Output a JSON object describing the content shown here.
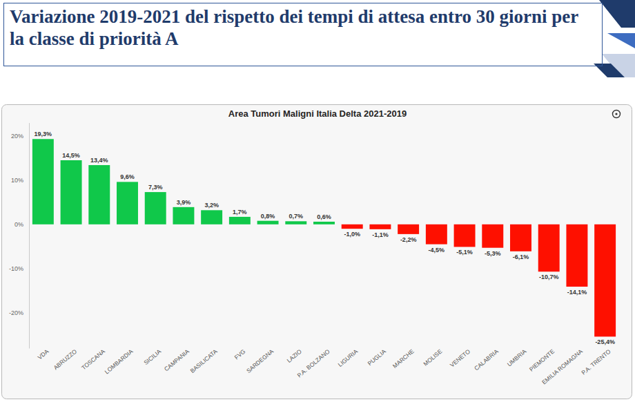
{
  "header": {
    "title": "Variazione 2019-2021 del rispetto dei tempi di attesa entro 30 giorni per la classe di priorità A"
  },
  "chart_data": {
    "type": "bar",
    "title": "Area Tumori Maligni Italia Delta 2021-2019",
    "categories": [
      "VDA",
      "ABRUZZO",
      "TOSCANA",
      "LOMBARDIA",
      "SICILIA",
      "CAMPANIA",
      "BASILICATA",
      "FVG",
      "SARDEGNA",
      "LAZIO",
      "P.A. BOLZANO",
      "LIGURIA",
      "PUGLIA",
      "MARCHE",
      "MOLISE",
      "VENETO",
      "CALABRIA",
      "UMBRIA",
      "PIEMONTE",
      "EMILIA ROMAGNA",
      "P.A. TRENTO"
    ],
    "values": [
      19.3,
      14.5,
      13.4,
      9.6,
      7.3,
      3.9,
      3.2,
      1.7,
      0.8,
      0.7,
      0.6,
      -1.0,
      -1.1,
      -2.2,
      -4.5,
      -5.1,
      -5.3,
      -6.1,
      -10.7,
      -14.1,
      -25.4
    ],
    "value_labels": [
      "19,3%",
      "14,5%",
      "13,4%",
      "9,6%",
      "7,3%",
      "3,9%",
      "3,2%",
      "1,7%",
      "0,8%",
      "0,7%",
      "0,6%",
      "-1,0%",
      "-1,1%",
      "-2,2%",
      "-4,5%",
      "-5,1%",
      "-5,3%",
      "-6,1%",
      "-10,7%",
      "-14,1%",
      "-25,4%"
    ],
    "colors": [
      "#10c84a",
      "#10c84a",
      "#10c84a",
      "#10c84a",
      "#10c84a",
      "#10c84a",
      "#10c84a",
      "#10c84a",
      "#10c84a",
      "#10c84a",
      "#10c84a",
      "#fe1000",
      "#fe1000",
      "#fe1000",
      "#fe1000",
      "#fe1000",
      "#fe1000",
      "#fe1000",
      "#fe1000",
      "#fe1000",
      "#fe1000"
    ],
    "ylim": [
      -28,
      23
    ],
    "yticks": [
      {
        "value": -20,
        "label": "-20%"
      },
      {
        "value": -10,
        "label": "-10%"
      },
      {
        "value": 0,
        "label": "0%"
      },
      {
        "value": 10,
        "label": "10%"
      },
      {
        "value": 20,
        "label": "20%"
      }
    ],
    "grid": false,
    "data_labels": true
  }
}
